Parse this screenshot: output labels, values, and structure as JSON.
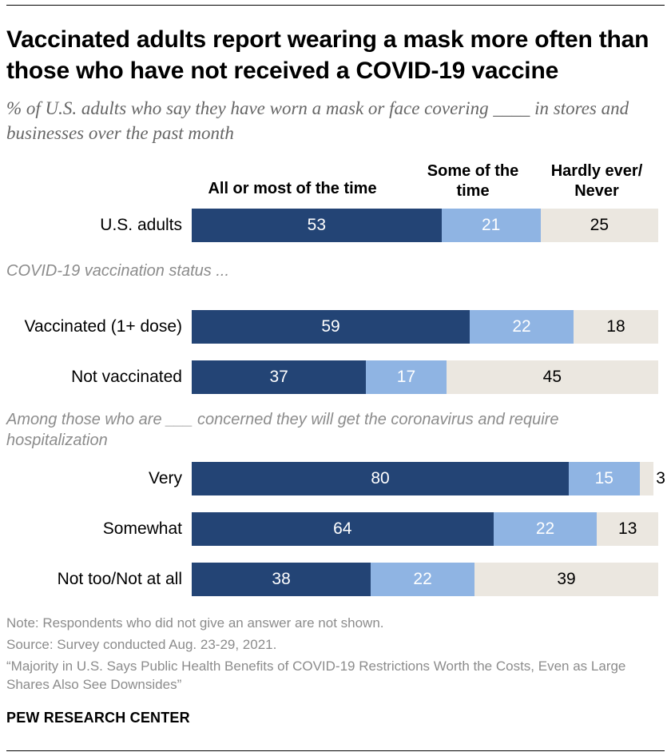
{
  "title": "Vaccinated adults report wearing a mask more often than those who have not received a COVID-19 vaccine",
  "subtitle": "% of U.S. adults who say they have worn a mask or face covering ____ in stores and businesses over the past month",
  "column_headers": {
    "most": "All or most of the time",
    "some": "Some of the time",
    "hardly": "Hardly ever/ Never"
  },
  "sections": {
    "vaccination": "COVID-19 vaccination status ...",
    "concern": "Among those who are ___ concerned they will get the coronavirus and require hospitalization"
  },
  "colors": {
    "most": "#234475",
    "some": "#8fb4e3",
    "hardly": "#ebe7e0",
    "label_dark_bg": "#ffffff",
    "label_light_bg": "#000000"
  },
  "chart_data": {
    "type": "bar",
    "orientation": "horizontal-stacked",
    "title": "Vaccinated adults report wearing a mask more often than those who have not received a COVID-19 vaccine",
    "subtitle": "% of U.S. adults who say they have worn a mask or face covering ____ in stores and businesses over the past month",
    "xlim": [
      0,
      100
    ],
    "categories": [
      "U.S. adults",
      "Vaccinated (1+ dose)",
      "Not vaccinated",
      "Very",
      "Somewhat",
      "Not too/Not at all"
    ],
    "series": [
      {
        "name": "All or most of the time",
        "values": [
          53,
          59,
          37,
          80,
          64,
          38
        ]
      },
      {
        "name": "Some of the time",
        "values": [
          21,
          22,
          17,
          15,
          22,
          22
        ]
      },
      {
        "name": "Hardly ever/ Never",
        "values": [
          25,
          18,
          45,
          3,
          13,
          39
        ]
      }
    ]
  },
  "footer": {
    "note": "Note: Respondents who did not give an answer are not shown.",
    "source": "Source: Survey conducted Aug. 23-29, 2021.",
    "report": "“Majority in U.S. Says Public Health Benefits of COVID-19 Restrictions Worth the Costs, Even as Large Shares Also See Downsides”",
    "brand": "PEW RESEARCH CENTER"
  }
}
